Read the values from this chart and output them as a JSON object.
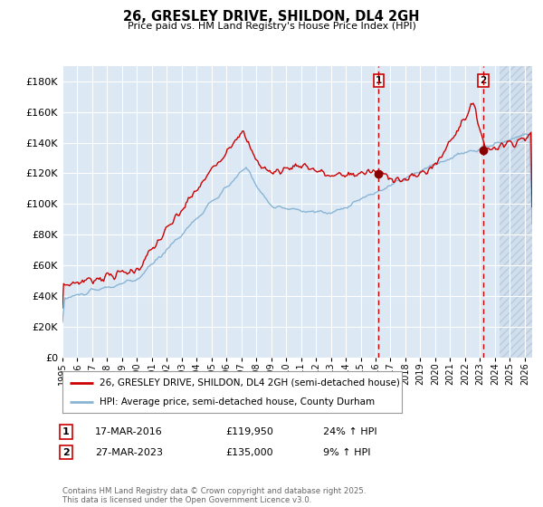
{
  "title": "26, GRESLEY DRIVE, SHILDON, DL4 2GH",
  "subtitle": "Price paid vs. HM Land Registry's House Price Index (HPI)",
  "ylim": [
    0,
    190000
  ],
  "ytick_step": 20000,
  "bg_color": "#dce9f5",
  "grid_color": "#ffffff",
  "red_line_color": "#cc0000",
  "blue_line_color": "#8ab4d4",
  "marker_color": "#880000",
  "vline_color": "#cc0000",
  "vline_x1": 2016.21,
  "vline_x2": 2023.23,
  "marker1_x": 2016.21,
  "marker1_y": 119950,
  "marker2_x": 2023.23,
  "marker2_y": 135000,
  "annotation1": {
    "num": "1",
    "date": "17-MAR-2016",
    "price": "£119,950",
    "pct": "24% ↑ HPI"
  },
  "annotation2": {
    "num": "2",
    "date": "27-MAR-2023",
    "price": "£135,000",
    "pct": "9% ↑ HPI"
  },
  "legend_line1": "26, GRESLEY DRIVE, SHILDON, DL4 2GH (semi-detached house)",
  "legend_line2": "HPI: Average price, semi-detached house, County Durham",
  "footer": "Contains HM Land Registry data © Crown copyright and database right 2025.\nThis data is licensed under the Open Government Licence v3.0.",
  "xmin": 1995,
  "xmax": 2026.5,
  "hatch_start": 2024.3
}
